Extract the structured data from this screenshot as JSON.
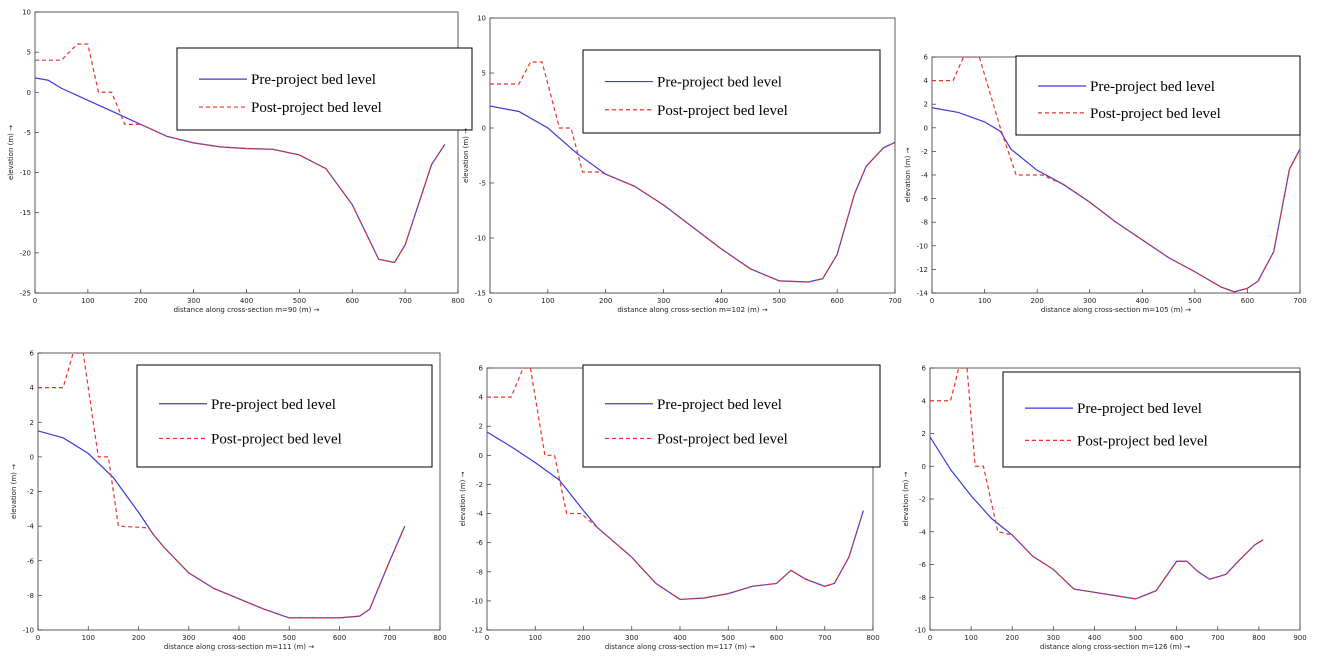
{
  "chart_data": [
    {
      "type": "line",
      "xlabel": "distance along cross-section m=90 (m) →",
      "ylabel": "elevation (m) →",
      "xlim": [
        0,
        800
      ],
      "xticks": [
        0,
        100,
        200,
        300,
        400,
        500,
        600,
        700,
        800
      ],
      "ylim": [
        -25,
        10
      ],
      "yticks": [
        -25,
        -20,
        -15,
        -10,
        -5,
        0,
        5,
        10
      ],
      "legend": "upper right",
      "series": [
        {
          "name": "Pre-project bed level",
          "color": "#3b3bd6",
          "style": "solid",
          "x": [
            0,
            25,
            50,
            100,
            150,
            200,
            250,
            300,
            350,
            400,
            450,
            500,
            550,
            600,
            650,
            680,
            700,
            750,
            775
          ],
          "values": [
            1.8,
            1.5,
            0.5,
            -1,
            -2.5,
            -4,
            -5.5,
            -6.3,
            -6.8,
            -7,
            -7.1,
            -7.8,
            -9.5,
            -14,
            -20.8,
            -21.2,
            -19,
            -9,
            -6.5
          ]
        },
        {
          "name": "Post-project bed level",
          "color": "#e8332f",
          "style": "dashed",
          "x": [
            0,
            50,
            80,
            100,
            120,
            145,
            170,
            200,
            250,
            300,
            350,
            400,
            450,
            500,
            550,
            600,
            650,
            680,
            700,
            750,
            775
          ],
          "values": [
            4,
            4,
            6,
            6,
            0,
            0,
            -4,
            -4,
            -5.5,
            -6.3,
            -6.8,
            -7,
            -7.1,
            -7.8,
            -9.5,
            -14,
            -20.8,
            -21.2,
            -19,
            -9,
            -6.5
          ]
        }
      ]
    },
    {
      "type": "line",
      "xlabel": "distance along cross-section m=102 (m) →",
      "ylabel": "elevation (m) →",
      "xlim": [
        0,
        700
      ],
      "xticks": [
        0,
        100,
        200,
        300,
        400,
        500,
        600,
        700
      ],
      "ylim": [
        -15,
        10
      ],
      "yticks": [
        -15,
        -10,
        -5,
        0,
        5,
        10
      ],
      "legend": "upper right",
      "series": [
        {
          "name": "Pre-project bed level",
          "color": "#3b3bd6",
          "style": "solid",
          "x": [
            0,
            50,
            100,
            150,
            200,
            250,
            300,
            350,
            400,
            450,
            500,
            550,
            575,
            600,
            630,
            650,
            680,
            700
          ],
          "values": [
            2,
            1.5,
            0,
            -2.3,
            -4.2,
            -5.3,
            -7,
            -9,
            -11,
            -12.8,
            -13.9,
            -14,
            -13.7,
            -11.5,
            -6,
            -3.5,
            -1.8,
            -1.3
          ]
        },
        {
          "name": "Post-project bed level",
          "color": "#e8332f",
          "style": "dashed",
          "x": [
            0,
            50,
            70,
            90,
            120,
            140,
            160,
            190,
            200,
            250,
            300,
            350,
            400,
            450,
            500,
            550,
            575,
            600,
            630,
            650,
            680,
            700
          ],
          "values": [
            4,
            4,
            6,
            6,
            0,
            0,
            -4,
            -4,
            -4.2,
            -5.3,
            -7,
            -9,
            -11,
            -12.8,
            -13.9,
            -14,
            -13.7,
            -11.5,
            -6,
            -3.5,
            -1.8,
            -1.3
          ]
        }
      ]
    },
    {
      "type": "line",
      "xlabel": "distance along cross-section m=105 (m) →",
      "ylabel": "elevation (m) →",
      "xlim": [
        0,
        700
      ],
      "xticks": [
        0,
        100,
        200,
        300,
        400,
        500,
        600,
        700
      ],
      "ylim": [
        -14,
        6
      ],
      "yticks": [
        -14,
        -12,
        -10,
        -8,
        -6,
        -4,
        -2,
        0,
        2,
        4,
        6
      ],
      "legend": "upper right",
      "series": [
        {
          "name": "Pre-project bed level",
          "color": "#3b3bd6",
          "style": "solid",
          "x": [
            0,
            50,
            100,
            130,
            150,
            200,
            250,
            300,
            350,
            400,
            450,
            500,
            550,
            575,
            600,
            620,
            650,
            680,
            700
          ],
          "values": [
            1.7,
            1.3,
            0.5,
            -0.3,
            -1.8,
            -3.6,
            -4.8,
            -6.3,
            -8,
            -9.5,
            -11,
            -12.2,
            -13.5,
            -13.9,
            -13.6,
            -13,
            -10.5,
            -3.5,
            -1.8
          ]
        },
        {
          "name": "Post-project bed level",
          "color": "#e8332f",
          "style": "dashed",
          "x": [
            0,
            40,
            60,
            90,
            130,
            160,
            210,
            250,
            300,
            350,
            400,
            450,
            500,
            550,
            575,
            600,
            620,
            650,
            680,
            700
          ],
          "values": [
            4,
            4,
            6,
            6,
            0,
            -4,
            -4,
            -4.8,
            -6.3,
            -8,
            -9.5,
            -11,
            -12.2,
            -13.5,
            -13.9,
            -13.6,
            -13,
            -10.5,
            -3.5,
            -1.8
          ]
        }
      ]
    },
    {
      "type": "line",
      "xlabel": "distance along cross-section m=111 (m) →",
      "ylabel": "elevation (m) →",
      "xlim": [
        0,
        800
      ],
      "xticks": [
        0,
        100,
        200,
        300,
        400,
        500,
        600,
        700,
        800
      ],
      "ylim": [
        -10,
        6
      ],
      "yticks": [
        -10,
        -8,
        -6,
        -4,
        -2,
        0,
        2,
        4,
        6
      ],
      "legend": "upper right",
      "series": [
        {
          "name": "Pre-project bed level",
          "color": "#3b3bd6",
          "style": "solid",
          "x": [
            0,
            50,
            100,
            150,
            200,
            230,
            250,
            300,
            350,
            400,
            450,
            500,
            550,
            600,
            640,
            660,
            700,
            730
          ],
          "values": [
            1.5,
            1.1,
            0.2,
            -1.2,
            -3.2,
            -4.5,
            -5.2,
            -6.7,
            -7.6,
            -8.2,
            -8.8,
            -9.3,
            -9.3,
            -9.3,
            -9.2,
            -8.8,
            -6,
            -4
          ]
        },
        {
          "name": "Post-project bed level",
          "color": "#e8332f",
          "style": "dashed",
          "x": [
            0,
            50,
            70,
            90,
            120,
            140,
            160,
            220,
            230,
            250,
            300,
            350,
            400,
            450,
            500,
            550,
            600,
            640,
            660,
            700,
            730
          ],
          "values": [
            4,
            4,
            6,
            6,
            0,
            0,
            -4,
            -4.1,
            -4.5,
            -5.2,
            -6.7,
            -7.6,
            -8.2,
            -8.8,
            -9.3,
            -9.3,
            -9.3,
            -9.2,
            -8.8,
            -6,
            -4
          ]
        }
      ]
    },
    {
      "type": "line",
      "xlabel": "distance along cross-section m=117 (m) →",
      "ylabel": "elevation (m) →",
      "xlim": [
        0,
        800
      ],
      "xticks": [
        0,
        100,
        200,
        300,
        400,
        500,
        600,
        700,
        800
      ],
      "ylim": [
        -12,
        6
      ],
      "yticks": [
        -12,
        -10,
        -8,
        -6,
        -4,
        -2,
        0,
        2,
        4,
        6
      ],
      "legend": "upper right",
      "series": [
        {
          "name": "Pre-project bed level",
          "color": "#3b3bd6",
          "style": "solid",
          "x": [
            0,
            50,
            100,
            150,
            200,
            230,
            300,
            350,
            400,
            450,
            500,
            550,
            600,
            630,
            660,
            700,
            720,
            750,
            780
          ],
          "values": [
            1.6,
            0.6,
            -0.5,
            -1.7,
            -3.8,
            -5,
            -7,
            -8.8,
            -9.9,
            -9.8,
            -9.5,
            -9,
            -8.8,
            -7.9,
            -8.5,
            -9,
            -8.8,
            -7,
            -3.8
          ]
        },
        {
          "name": "Post-project bed level",
          "color": "#e8332f",
          "style": "dashed",
          "x": [
            0,
            50,
            75,
            90,
            120,
            140,
            165,
            195,
            230,
            300,
            350,
            400,
            450,
            500,
            550,
            600,
            630,
            660,
            700,
            720,
            750,
            780
          ],
          "values": [
            4,
            4,
            6,
            6,
            0,
            0,
            -4,
            -4,
            -5,
            -7,
            -8.8,
            -9.9,
            -9.8,
            -9.5,
            -9,
            -8.8,
            -7.9,
            -8.5,
            -9,
            -8.8,
            -7,
            -3.8
          ]
        }
      ]
    },
    {
      "type": "line",
      "xlabel": "distance along cross-section m=126 (m) →",
      "ylabel": "elevation (m) →",
      "xlim": [
        0,
        900
      ],
      "xticks": [
        0,
        100,
        200,
        300,
        400,
        500,
        600,
        700,
        800,
        900
      ],
      "ylim": [
        -10,
        6
      ],
      "yticks": [
        -10,
        -8,
        -6,
        -4,
        -2,
        0,
        2,
        4,
        6
      ],
      "legend": "upper right",
      "series": [
        {
          "name": "Pre-project bed level",
          "color": "#3b3bd6",
          "style": "solid",
          "x": [
            0,
            50,
            100,
            150,
            200,
            250,
            300,
            350,
            400,
            450,
            500,
            550,
            600,
            625,
            650,
            680,
            720,
            750,
            790,
            810
          ],
          "values": [
            1.8,
            -0.2,
            -1.8,
            -3.2,
            -4.2,
            -5.5,
            -6.3,
            -7.5,
            -7.7,
            -7.9,
            -8.1,
            -7.6,
            -5.8,
            -5.8,
            -6.4,
            -6.9,
            -6.6,
            -5.8,
            -4.8,
            -4.5
          ]
        },
        {
          "name": "Post-project bed level",
          "color": "#e8332f",
          "style": "dashed",
          "x": [
            0,
            50,
            70,
            90,
            110,
            130,
            165,
            200,
            250,
            300,
            350,
            400,
            450,
            500,
            550,
            600,
            625,
            650,
            680,
            720,
            750,
            790,
            810
          ],
          "values": [
            4,
            4,
            6,
            6,
            0,
            0,
            -4,
            -4.2,
            -5.5,
            -6.3,
            -7.5,
            -7.7,
            -7.9,
            -8.1,
            -7.6,
            -5.8,
            -5.8,
            -6.4,
            -6.9,
            -6.6,
            -5.8,
            -4.8,
            -4.5
          ]
        }
      ]
    }
  ]
}
